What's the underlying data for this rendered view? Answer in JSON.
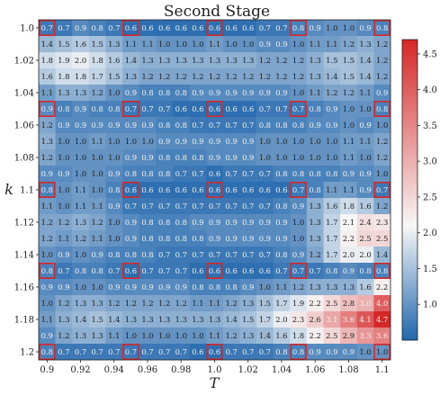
{
  "chart_data": {
    "type": "heatmap",
    "title": "Second Stage",
    "xlabel": "T",
    "ylabel": "k",
    "x": [
      "0.9",
      "0.91",
      "0.92",
      "0.93",
      "0.94",
      "0.95",
      "0.96",
      "0.97",
      "0.98",
      "0.99",
      "1.0",
      "1.01",
      "1.02",
      "1.03",
      "1.04",
      "1.05",
      "1.06",
      "1.07",
      "1.08",
      "1.09",
      "1.1"
    ],
    "y": [
      "1.0",
      "1.01",
      "1.02",
      "1.03",
      "1.04",
      "1.05",
      "1.06",
      "1.07",
      "1.08",
      "1.09",
      "1.1",
      "1.11",
      "1.12",
      "1.13",
      "1.14",
      "1.15",
      "1.16",
      "1.17",
      "1.18",
      "1.19",
      "1.2"
    ],
    "x_tick_labels": [
      "0.9",
      "0.92",
      "0.94",
      "0.96",
      "0.98",
      "1.0",
      "1.02",
      "1.04",
      "1.06",
      "1.08",
      "1.1"
    ],
    "y_tick_labels": [
      "1.0",
      "1.02",
      "1.04",
      "1.06",
      "1.08",
      "1.1",
      "1.12",
      "1.14",
      "1.16",
      "1.18",
      "1.2"
    ],
    "values": [
      [
        0.7,
        0.7,
        0.9,
        0.8,
        0.7,
        0.6,
        0.6,
        0.6,
        0.6,
        0.6,
        0.6,
        0.6,
        0.6,
        0.7,
        0.7,
        0.8,
        0.9,
        1.0,
        1.0,
        0.9,
        0.8
      ],
      [
        1.4,
        1.5,
        1.6,
        1.5,
        1.3,
        1.1,
        1.1,
        1.0,
        1.0,
        1.0,
        1.1,
        1.0,
        1.0,
        0.9,
        0.9,
        1.0,
        1.1,
        1.1,
        1.2,
        1.3,
        1.2
      ],
      [
        1.8,
        1.9,
        2.0,
        1.8,
        1.6,
        1.4,
        1.3,
        1.3,
        1.3,
        1.3,
        1.3,
        1.3,
        1.3,
        1.2,
        1.2,
        1.2,
        1.3,
        1.5,
        1.5,
        1.4,
        1.2
      ],
      [
        1.6,
        1.8,
        1.8,
        1.7,
        1.5,
        1.3,
        1.2,
        1.2,
        1.2,
        1.2,
        1.2,
        1.2,
        1.2,
        1.2,
        1.2,
        1.2,
        1.3,
        1.4,
        1.5,
        1.4,
        1.2
      ],
      [
        1.1,
        1.3,
        1.3,
        1.2,
        1.0,
        0.9,
        0.8,
        0.8,
        0.8,
        0.9,
        0.9,
        0.9,
        0.9,
        0.9,
        0.9,
        1.0,
        1.1,
        1.2,
        1.2,
        1.1,
        0.9
      ],
      [
        0.9,
        0.8,
        0.9,
        0.8,
        0.8,
        0.7,
        0.7,
        0.7,
        0.6,
        0.6,
        0.6,
        0.6,
        0.6,
        0.7,
        0.7,
        0.7,
        0.8,
        0.9,
        1.0,
        1.0,
        0.8
      ],
      [
        1.2,
        0.9,
        0.9,
        0.9,
        0.9,
        0.9,
        0.9,
        0.8,
        0.8,
        0.7,
        0.7,
        0.7,
        0.7,
        0.8,
        0.8,
        0.8,
        0.9,
        0.9,
        1.0,
        0.9,
        1.0
      ],
      [
        1.3,
        1.0,
        1.0,
        1.1,
        1.0,
        1.0,
        1.0,
        0.9,
        0.9,
        0.9,
        0.9,
        0.9,
        0.9,
        1.0,
        1.0,
        1.0,
        1.0,
        1.0,
        1.1,
        1.1,
        1.2
      ],
      [
        1.2,
        1.0,
        1.0,
        1.0,
        1.0,
        0.9,
        0.9,
        0.8,
        0.8,
        0.8,
        0.9,
        0.9,
        0.9,
        1.0,
        1.0,
        1.0,
        1.0,
        1.0,
        1.1,
        1.0,
        1.2
      ],
      [
        0.9,
        0.9,
        1.0,
        1.0,
        0.9,
        0.8,
        0.8,
        0.8,
        0.7,
        0.7,
        0.6,
        0.7,
        0.7,
        0.7,
        0.8,
        0.8,
        0.8,
        0.8,
        0.9,
        0.9,
        1.0
      ],
      [
        0.8,
        1.0,
        1.1,
        1.0,
        0.8,
        0.6,
        0.6,
        0.6,
        0.6,
        0.6,
        0.6,
        0.6,
        0.6,
        0.6,
        0.6,
        0.7,
        0.8,
        1.1,
        1.1,
        0.9,
        0.7
      ],
      [
        1.1,
        1.0,
        1.1,
        1.1,
        0.9,
        0.7,
        0.7,
        0.7,
        0.7,
        0.7,
        0.7,
        0.7,
        0.7,
        0.7,
        0.8,
        0.9,
        1.3,
        1.6,
        1.8,
        1.6,
        1.2
      ],
      [
        1.2,
        1.2,
        1.3,
        1.2,
        1.0,
        0.9,
        0.8,
        0.8,
        0.8,
        0.9,
        0.9,
        0.9,
        0.9,
        0.9,
        0.9,
        1.0,
        1.3,
        1.7,
        2.1,
        2.4,
        2.3
      ],
      [
        1.2,
        1.1,
        1.2,
        1.1,
        1.0,
        0.9,
        0.8,
        0.8,
        0.8,
        0.8,
        0.9,
        0.9,
        0.9,
        0.9,
        0.9,
        1.0,
        1.3,
        1.7,
        2.2,
        2.5,
        2.5
      ],
      [
        1.0,
        0.9,
        1.0,
        0.9,
        0.8,
        0.8,
        0.8,
        0.7,
        0.7,
        0.7,
        0.7,
        0.7,
        0.7,
        0.7,
        0.8,
        0.9,
        1.2,
        1.7,
        2.0,
        2.0,
        1.4
      ],
      [
        0.8,
        0.7,
        0.8,
        0.8,
        0.7,
        0.6,
        0.7,
        0.7,
        0.7,
        0.6,
        0.6,
        0.6,
        0.6,
        0.6,
        0.7,
        0.7,
        0.7,
        0.8,
        0.9,
        0.8,
        0.8
      ],
      [
        0.9,
        0.9,
        1.0,
        1.0,
        0.9,
        0.9,
        0.9,
        0.9,
        0.9,
        0.8,
        0.8,
        0.8,
        0.9,
        1.0,
        1.1,
        1.2,
        1.3,
        1.3,
        1.3,
        1.6,
        2.2
      ],
      [
        1.0,
        1.2,
        1.3,
        1.3,
        1.2,
        1.2,
        1.2,
        1.2,
        1.2,
        1.1,
        1.1,
        1.2,
        1.3,
        1.5,
        1.7,
        1.9,
        2.2,
        2.5,
        2.8,
        3.0,
        4.0
      ],
      [
        1.1,
        1.3,
        1.4,
        1.5,
        1.4,
        1.3,
        1.3,
        1.3,
        1.3,
        1.3,
        1.3,
        1.4,
        1.5,
        1.7,
        2.0,
        2.3,
        2.6,
        3.1,
        3.6,
        4.1,
        4.7
      ],
      [
        0.9,
        1.2,
        1.3,
        1.3,
        1.1,
        1.0,
        1.0,
        1.0,
        1.0,
        1.0,
        1.1,
        1.2,
        1.3,
        1.4,
        1.6,
        1.8,
        2.2,
        2.5,
        2.9,
        3.3,
        3.6
      ],
      [
        0.8,
        0.7,
        0.7,
        0.7,
        0.7,
        0.7,
        0.7,
        0.7,
        0.7,
        0.6,
        0.6,
        0.7,
        0.7,
        0.7,
        0.8,
        0.8,
        0.9,
        0.9,
        0.9,
        1.0,
        1.0
      ]
    ],
    "highlighted_cells": [
      [
        0,
        0
      ],
      [
        0,
        5
      ],
      [
        0,
        10
      ],
      [
        0,
        15
      ],
      [
        0,
        20
      ],
      [
        5,
        0
      ],
      [
        5,
        5
      ],
      [
        5,
        10
      ],
      [
        5,
        15
      ],
      [
        5,
        20
      ],
      [
        10,
        0
      ],
      [
        10,
        5
      ],
      [
        10,
        10
      ],
      [
        10,
        15
      ],
      [
        10,
        20
      ],
      [
        15,
        0
      ],
      [
        15,
        5
      ],
      [
        15,
        10
      ],
      [
        15,
        15
      ],
      [
        15,
        20
      ],
      [
        20,
        0
      ],
      [
        20,
        5
      ],
      [
        20,
        10
      ],
      [
        20,
        15
      ],
      [
        20,
        20
      ]
    ],
    "highlight_color": "#d62728",
    "colorbar": {
      "vmin": 0.5,
      "vmax": 4.7,
      "ticks": [
        "1.0",
        "1.5",
        "2.0",
        "2.5",
        "3.0",
        "3.5",
        "4.0",
        "4.5"
      ],
      "colormap": [
        "#2166ac",
        "#f7f7f7",
        "#d62728"
      ],
      "center": 2.1
    },
    "grid": false
  }
}
